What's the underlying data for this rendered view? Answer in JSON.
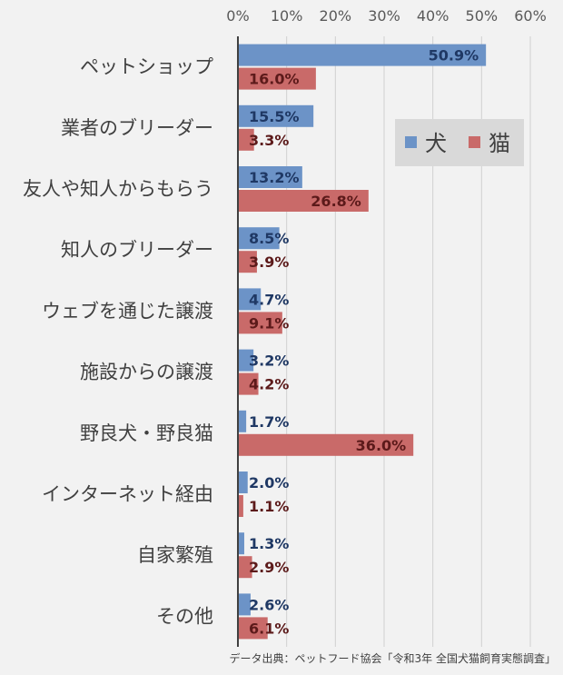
{
  "chart_data": {
    "type": "bar",
    "orientation": "horizontal",
    "categories": [
      "ペットショップ",
      "業者のブリーダー",
      "友人や知人からもらう",
      "知人のブリーダー",
      "ウェブを通じた譲渡",
      "施設からの譲渡",
      "野良犬・野良猫",
      "インターネット経由",
      "自家繁殖",
      "その他"
    ],
    "series": [
      {
        "name": "犬",
        "color": "#6c93c7",
        "label_color": "#1f3864",
        "values": [
          50.9,
          15.5,
          13.2,
          8.5,
          4.7,
          3.2,
          1.7,
          2.0,
          1.3,
          2.6
        ],
        "labels": [
          "50.9%",
          "15.5%",
          "13.2%",
          "8.5%",
          "4.7%",
          "3.2%",
          "1.7%",
          "2.0%",
          "1.3%",
          "2.6%"
        ]
      },
      {
        "name": "猫",
        "color": "#c96a69",
        "label_color": "#5c1a1a",
        "values": [
          16.0,
          3.3,
          26.8,
          3.9,
          9.1,
          4.2,
          36.0,
          1.1,
          2.9,
          6.1
        ],
        "labels": [
          "16.0%",
          "3.3%",
          "26.8%",
          "3.9%",
          "9.1%",
          "4.2%",
          "36.0%",
          "1.1%",
          "2.9%",
          "6.1%"
        ]
      }
    ],
    "xticks": [
      "0%",
      "10%",
      "20%",
      "30%",
      "40%",
      "50%",
      "60%"
    ],
    "xlim": [
      0,
      60
    ],
    "grid": true,
    "legend_position": "top-right",
    "source": "データ出典：ペットフード協会「令和3年 全国犬猫飼育実態調査」"
  }
}
